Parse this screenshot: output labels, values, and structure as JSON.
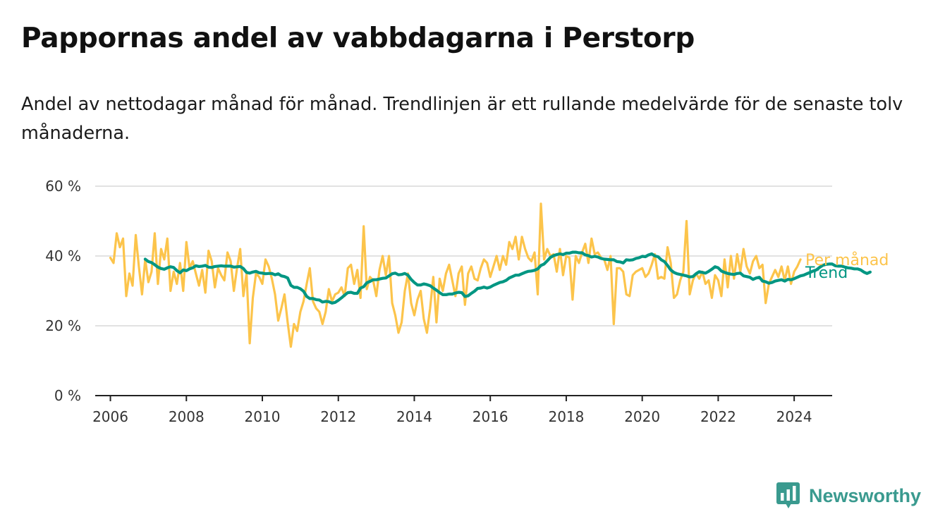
{
  "title": "Pappornas andel av vabbdagarna i Perstorp",
  "subtitle": "Andel av nettodagar månad för månad. Trendlinjen är ett rullande medelvärde för de senaste tolv månaderna.",
  "brand": {
    "name": "Newsworthy",
    "icon": "newsworthy-logo-icon",
    "color": "#3a9a8f"
  },
  "chart_data": {
    "type": "line",
    "title": "Pappornas andel av vabbdagarna i Perstorp",
    "xlabel": "",
    "ylabel": "",
    "xlim": [
      2005.6,
      2025.0
    ],
    "ylim": [
      0,
      60
    ],
    "grid": true,
    "x_ticks": [
      2006,
      2008,
      2010,
      2012,
      2014,
      2016,
      2018,
      2020,
      2022,
      2024
    ],
    "y_ticks": [
      0,
      20,
      40,
      60
    ],
    "y_tick_labels": [
      "0 %",
      "20 %",
      "40 %",
      "60 %"
    ],
    "legend": "labels at line ends (right)",
    "series": [
      {
        "name": "Per månad",
        "color": "#fcc44b",
        "x_start": "2006-01",
        "x_step": "1 month",
        "values": [
          39.5,
          38.0,
          46.5,
          42.5,
          45.0,
          28.5,
          35.0,
          31.5,
          46.0,
          37.0,
          29.0,
          39.0,
          32.5,
          35.5,
          46.5,
          32.0,
          42.0,
          39.0,
          45.0,
          30.0,
          35.5,
          32.0,
          38.0,
          30.0,
          44.0,
          36.5,
          38.5,
          35.0,
          31.5,
          36.0,
          29.5,
          41.5,
          38.5,
          31.0,
          36.5,
          34.5,
          33.0,
          41.0,
          38.5,
          30.0,
          36.5,
          42.0,
          28.5,
          35.0,
          15.0,
          28.0,
          35.0,
          34.0,
          32.0,
          39.0,
          37.0,
          33.5,
          29.0,
          21.5,
          25.0,
          29.0,
          21.0,
          14.0,
          20.5,
          18.5,
          24.0,
          27.0,
          32.0,
          36.5,
          27.0,
          25.0,
          24.0,
          20.5,
          24.0,
          30.5,
          27.0,
          29.0,
          29.5,
          31.0,
          28.5,
          36.5,
          37.5,
          32.0,
          36.0,
          28.0,
          48.5,
          30.5,
          34.0,
          33.0,
          28.5,
          36.0,
          40.0,
          34.5,
          40.0,
          26.5,
          23.0,
          18.0,
          21.0,
          30.0,
          35.0,
          26.5,
          23.0,
          27.5,
          30.0,
          22.0,
          18.0,
          25.0,
          34.0,
          21.0,
          33.5,
          30.0,
          35.0,
          37.5,
          33.0,
          28.5,
          35.0,
          37.0,
          26.0,
          35.0,
          37.0,
          33.5,
          33.0,
          36.5,
          39.0,
          38.0,
          34.0,
          37.0,
          40.0,
          36.0,
          40.0,
          37.5,
          44.0,
          42.0,
          45.5,
          39.0,
          45.5,
          42.0,
          39.5,
          38.5,
          41.0,
          29.0,
          55.0,
          39.0,
          42.0,
          40.0,
          40.5,
          35.5,
          42.0,
          34.5,
          40.0,
          39.5,
          27.5,
          40.0,
          38.0,
          41.0,
          43.5,
          38.0,
          45.0,
          40.5,
          41.0,
          39.5,
          39.0,
          36.0,
          40.0,
          20.5,
          36.5,
          36.5,
          35.5,
          29.0,
          28.5,
          34.5,
          35.5,
          36.0,
          36.5,
          34.0,
          35.0,
          37.5,
          40.5,
          33.5,
          34.0,
          33.5,
          42.5,
          38.0,
          28.0,
          29.0,
          33.0,
          35.5,
          50.0,
          29.0,
          33.0,
          35.0,
          33.5,
          35.5,
          32.0,
          33.0,
          28.0,
          34.5,
          33.0,
          28.5,
          39.0,
          31.0,
          40.0,
          33.5,
          40.5,
          35.5,
          42.0,
          37.0,
          35.0,
          38.5,
          40.0,
          36.5,
          37.5,
          26.5,
          32.0,
          34.0,
          36.0,
          34.0,
          37.0,
          33.0,
          37.0,
          32.0,
          35.5,
          37.0,
          39.0
        ]
      },
      {
        "name": "Trend",
        "color": "#009682",
        "x_start": "2006-12",
        "x_step": "1 month",
        "values": [
          39.1,
          38.4,
          38.1,
          37.5,
          36.8,
          36.4,
          36.2,
          36.6,
          36.9,
          36.7,
          35.8,
          35.2,
          36.0,
          35.8,
          36.3,
          36.6,
          37.2,
          37.0,
          37.1,
          37.3,
          36.8,
          36.7,
          37.0,
          37.1,
          37.2,
          37.1,
          37.1,
          37.1,
          36.8,
          36.9,
          37.0,
          36.4,
          35.3,
          35.1,
          35.4,
          35.6,
          35.2,
          35.1,
          34.9,
          35.0,
          35.0,
          34.6,
          34.9,
          34.3,
          34.1,
          33.7,
          31.6,
          31.0,
          31.0,
          30.6,
          29.9,
          28.4,
          27.8,
          27.8,
          27.5,
          27.4,
          26.8,
          27.0,
          26.9,
          26.5,
          26.7,
          27.3,
          28.0,
          28.8,
          29.5,
          29.6,
          29.3,
          29.3,
          30.8,
          31.2,
          32.3,
          32.7,
          33.2,
          33.2,
          33.4,
          33.6,
          33.7,
          34.3,
          34.9,
          35.1,
          34.6,
          34.7,
          35.0,
          34.5,
          33.3,
          32.4,
          31.7,
          31.7,
          32.0,
          31.8,
          31.5,
          30.8,
          30.2,
          29.5,
          28.9,
          28.9,
          29.1,
          29.1,
          29.4,
          29.6,
          29.5,
          28.4,
          28.6,
          29.3,
          29.9,
          30.7,
          30.8,
          31.1,
          30.8,
          31.1,
          31.6,
          32.0,
          32.4,
          32.6,
          33.0,
          33.7,
          34.1,
          34.5,
          34.5,
          34.9,
          35.3,
          35.6,
          35.7,
          35.9,
          36.3,
          37.3,
          37.7,
          38.6,
          39.6,
          40.1,
          40.4,
          40.6,
          40.4,
          40.8,
          40.8,
          41.1,
          41.1,
          40.9,
          40.9,
          40.3,
          40.1,
          39.7,
          39.9,
          39.7,
          39.3,
          39.1,
          39.0,
          38.9,
          38.9,
          38.4,
          38.3,
          38.0,
          38.9,
          38.8,
          38.9,
          39.3,
          39.5,
          39.9,
          39.8,
          40.3,
          40.6,
          40.0,
          39.8,
          38.9,
          38.4,
          37.3,
          36.0,
          35.3,
          34.9,
          34.7,
          34.5,
          34.3,
          34.0,
          34.1,
          34.9,
          35.5,
          35.3,
          35.1,
          35.6,
          36.2,
          36.9,
          36.6,
          35.7,
          35.3,
          35.0,
          34.8,
          34.7,
          35.0,
          35.1,
          34.3,
          34.1,
          33.9,
          33.3,
          33.7,
          33.9,
          32.8,
          32.6,
          32.2,
          32.4,
          32.8,
          33.0,
          33.2,
          32.8,
          33.3,
          33.2,
          33.5,
          33.9,
          34.3,
          34.5,
          34.9,
          35.3,
          35.7,
          36.0,
          36.7,
          37.3,
          37.6,
          37.7,
          37.7,
          37.2,
          37.1,
          37.1,
          36.8,
          36.6,
          36.5,
          36.3,
          36.3,
          36.0,
          35.4,
          35.0,
          35.4
        ]
      }
    ]
  }
}
